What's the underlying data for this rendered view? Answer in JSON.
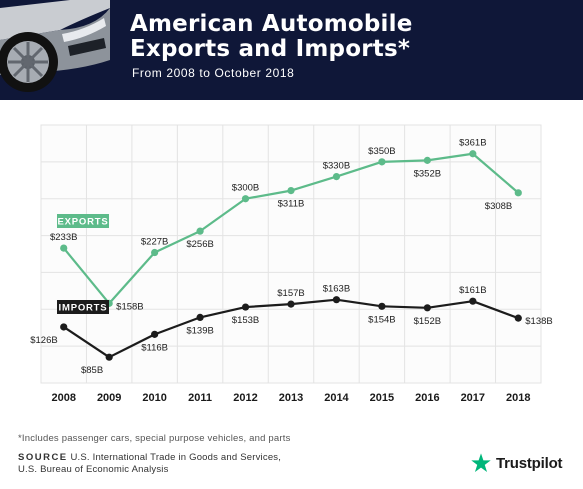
{
  "header": {
    "title_line1": "American Automobile",
    "title_line2": "Exports and Imports*",
    "subtitle": "From 2008 to October 2018"
  },
  "chart_data": {
    "type": "line",
    "x": [
      "2008",
      "2009",
      "2010",
      "2011",
      "2012",
      "2013",
      "2014",
      "2015",
      "2016",
      "2017",
      "2018"
    ],
    "series": [
      {
        "name": "EXPORTS",
        "values": [
          233,
          158,
          227,
          256,
          300,
          311,
          330,
          350,
          352,
          361,
          308
        ],
        "labels": [
          "$233B",
          "$158B",
          "$227B",
          "$256B",
          "$300B",
          "$311B",
          "$330B",
          "$350B",
          "$352B",
          "$361B",
          "$308B"
        ],
        "label_pos": [
          "above",
          "right",
          "above",
          "below",
          "above",
          "below",
          "above",
          "above",
          "below",
          "above",
          "left"
        ],
        "color": "#5dbb8a"
      },
      {
        "name": "IMPORTS",
        "values": [
          126,
          85,
          116,
          139,
          153,
          157,
          163,
          154,
          152,
          161,
          138
        ],
        "labels": [
          "$126B",
          "$85B",
          "$116B",
          "$139B",
          "$153B",
          "$157B",
          "$163B",
          "$154B",
          "$152B",
          "$161B",
          "$138B"
        ],
        "label_pos": [
          "left",
          "left",
          "below",
          "below",
          "below",
          "above",
          "above",
          "below",
          "below",
          "above",
          "right"
        ],
        "color": "#1c1c1c"
      }
    ],
    "ylim": [
      50,
      400
    ],
    "grid": true,
    "legend": "inline-labels"
  },
  "footer": {
    "footnote": "*Includes passenger cars, special purpose vehicles, and parts",
    "source_label": "SOURCE",
    "source_line1": " U.S. International Trade in Goods and Services,",
    "source_line2": "U.S. Bureau of Economic Analysis",
    "brand": "Trustpilot",
    "brand_star_color": "#00b67a"
  }
}
